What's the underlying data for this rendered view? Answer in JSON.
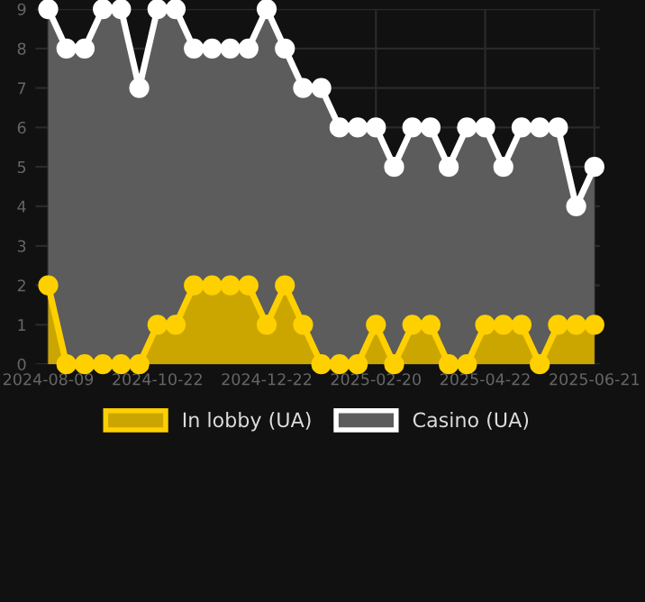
{
  "chart_data": {
    "type": "area",
    "categories": [
      "2024-08-09",
      null,
      null,
      null,
      null,
      null,
      "2024-10-22",
      null,
      null,
      null,
      null,
      null,
      "2024-12-22",
      null,
      null,
      null,
      null,
      null,
      "2025-02-20",
      null,
      null,
      null,
      null,
      null,
      "2025-04-22",
      null,
      null,
      null,
      null,
      null,
      "2025-06-21"
    ],
    "series": [
      {
        "name": "In lobby (UA)",
        "color": "#ffd000",
        "values": [
          2,
          0,
          0,
          0,
          0,
          0,
          1,
          1,
          2,
          2,
          2,
          2,
          1,
          2,
          1,
          0,
          0,
          0,
          1,
          0,
          1,
          1,
          0,
          0,
          1,
          1,
          1,
          0,
          1,
          1,
          1
        ]
      },
      {
        "name": "Casino (UA)",
        "color": "#ffffff",
        "values": [
          9,
          8,
          8,
          9,
          9,
          7,
          9,
          9,
          8,
          8,
          8,
          8,
          9,
          8,
          7,
          7,
          6,
          6,
          6,
          5,
          6,
          6,
          5,
          6,
          6,
          5,
          6,
          6,
          6,
          4,
          5
        ]
      }
    ],
    "ylim": [
      0,
      9
    ],
    "yticks": [
      0,
      1,
      2,
      3,
      4,
      5,
      6,
      7,
      8,
      9
    ],
    "grid": true,
    "legend": "bottom",
    "marker": "circle",
    "line_style": "solid"
  }
}
